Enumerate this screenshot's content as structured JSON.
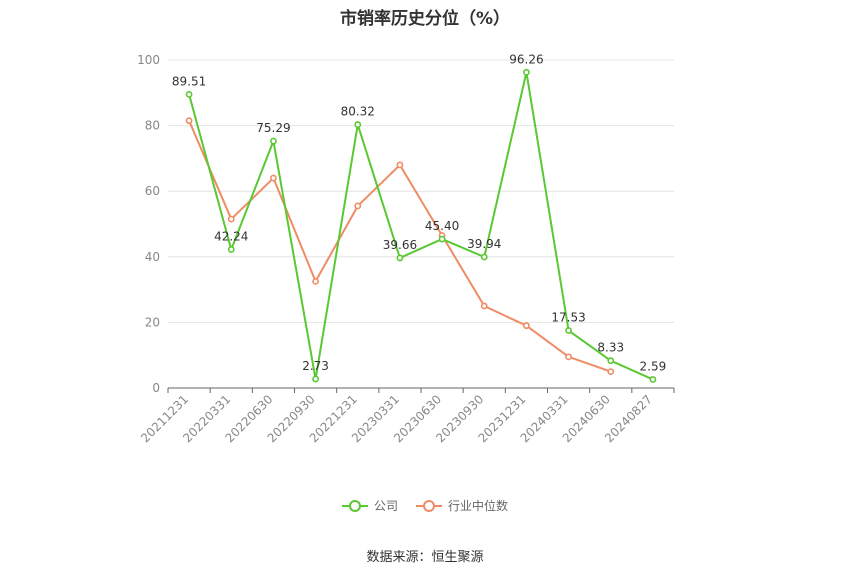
{
  "title": "市销率历史分位（%）",
  "source": "数据来源：恒生聚源",
  "colors": {
    "company": "#5ac832",
    "industry": "#f08c64",
    "grid": "#e4e4e4",
    "axis": "#666666",
    "label": "#333333"
  },
  "chart_data": {
    "type": "line",
    "title": "市销率历史分位（%）",
    "categories": [
      "20211231",
      "20220331",
      "20220630",
      "20220930",
      "20221231",
      "20230331",
      "20230630",
      "20230930",
      "20231231",
      "20240331",
      "20240630",
      "20240827"
    ],
    "ylim": [
      0,
      100
    ],
    "yticks": [
      0,
      20,
      40,
      60,
      80,
      100
    ],
    "grid": true,
    "legend_position": "bottom",
    "series": [
      {
        "name": "公司",
        "values": [
          89.51,
          42.24,
          75.29,
          2.73,
          80.32,
          39.66,
          45.4,
          39.94,
          96.26,
          17.53,
          8.33,
          2.59
        ],
        "labels": [
          "89.51",
          "42.24",
          "75.29",
          "2.73",
          "80.32",
          "39.66",
          "45.40",
          "39.94",
          "96.26",
          "17.53",
          "8.33",
          "2.59"
        ]
      },
      {
        "name": "行业中位数",
        "values": [
          81.5,
          51.5,
          64,
          32.5,
          55.5,
          68,
          46.5,
          25,
          19,
          9.5,
          5,
          null
        ]
      }
    ]
  }
}
